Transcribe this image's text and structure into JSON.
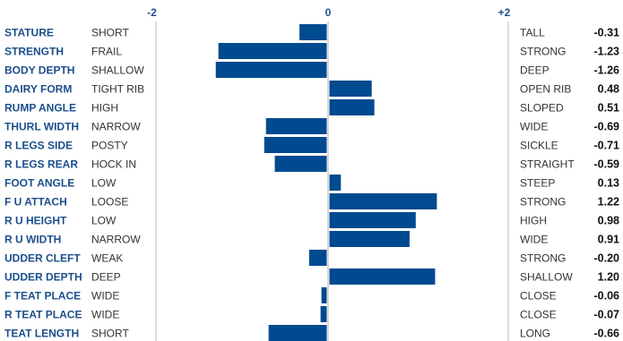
{
  "colors": {
    "bar": "#004a8f",
    "trait": "#1b4f8c",
    "axis": "#c9c9c9",
    "text": "#333333",
    "value": "#111111"
  },
  "chart_data": {
    "type": "bar",
    "orientation": "horizontal",
    "xlim": [
      -2,
      2
    ],
    "xticks": [
      "-2",
      "0",
      "+2"
    ],
    "grid": false,
    "legend": "none",
    "rows": [
      {
        "trait": "STATURE",
        "low": "SHORT",
        "high": "TALL",
        "value": -0.31,
        "label": "-0.31"
      },
      {
        "trait": "STRENGTH",
        "low": "FRAIL",
        "high": "STRONG",
        "value": -1.23,
        "label": "-1.23"
      },
      {
        "trait": "BODY DEPTH",
        "low": "SHALLOW",
        "high": "DEEP",
        "value": -1.26,
        "label": "-1.26"
      },
      {
        "trait": "DAIRY FORM",
        "low": "TIGHT RIB",
        "high": "OPEN RIB",
        "value": 0.48,
        "label": "0.48"
      },
      {
        "trait": "RUMP ANGLE",
        "low": "HIGH",
        "high": "SLOPED",
        "value": 0.51,
        "label": "0.51"
      },
      {
        "trait": "THURL WIDTH",
        "low": "NARROW",
        "high": "WIDE",
        "value": -0.69,
        "label": "-0.69"
      },
      {
        "trait": "R LEGS SIDE",
        "low": "POSTY",
        "high": "SICKLE",
        "value": -0.71,
        "label": "-0.71"
      },
      {
        "trait": "R LEGS REAR",
        "low": "HOCK IN",
        "high": "STRAIGHT",
        "value": -0.59,
        "label": "-0.59"
      },
      {
        "trait": "FOOT ANGLE",
        "low": "LOW",
        "high": "STEEP",
        "value": 0.13,
        "label": "0.13"
      },
      {
        "trait": "F U ATTACH",
        "low": "LOOSE",
        "high": "STRONG",
        "value": 1.22,
        "label": "1.22"
      },
      {
        "trait": "R U HEIGHT",
        "low": "LOW",
        "high": "HIGH",
        "value": 0.98,
        "label": "0.98"
      },
      {
        "trait": "R U WIDTH",
        "low": "NARROW",
        "high": "WIDE",
        "value": 0.91,
        "label": "0.91"
      },
      {
        "trait": "UDDER CLEFT",
        "low": "WEAK",
        "high": "STRONG",
        "value": -0.2,
        "label": "-0.20"
      },
      {
        "trait": "UDDER DEPTH",
        "low": "DEEP",
        "high": "SHALLOW",
        "value": 1.2,
        "label": "1.20"
      },
      {
        "trait": "F TEAT PLACE",
        "low": "WIDE",
        "high": "CLOSE",
        "value": -0.06,
        "label": "-0.06"
      },
      {
        "trait": "R TEAT PLACE",
        "low": "WIDE",
        "high": "CLOSE",
        "value": -0.07,
        "label": "-0.07"
      },
      {
        "trait": "TEAT LENGTH",
        "low": "SHORT",
        "high": "LONG",
        "value": -0.66,
        "label": "-0.66"
      }
    ]
  }
}
